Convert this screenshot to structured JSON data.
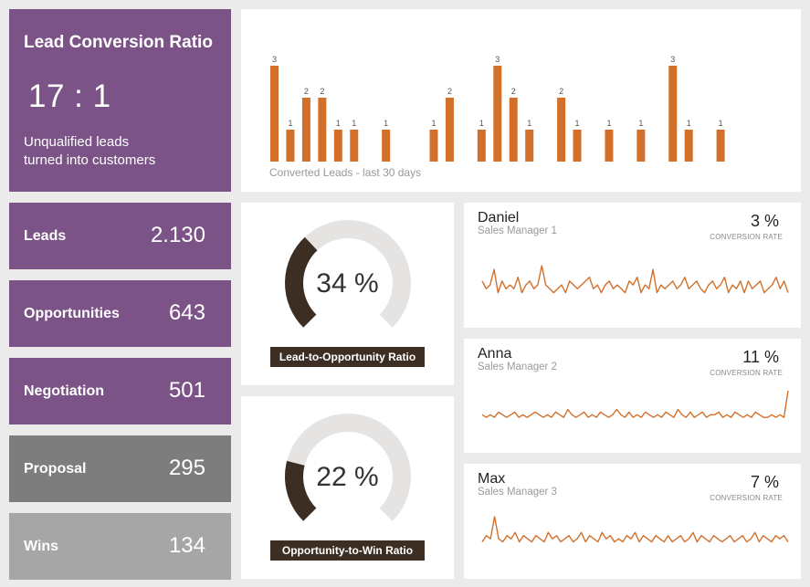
{
  "hero": {
    "title": "Lead Conversion Ratio",
    "ratio": "17 : 1",
    "description_line1": "Unqualified leads",
    "description_line2": "turned into customers"
  },
  "stats": [
    {
      "label": "Leads",
      "value": "2.130"
    },
    {
      "label": "Opportunities",
      "value": "643"
    },
    {
      "label": "Negotiation",
      "value": "501"
    },
    {
      "label": "Proposal",
      "value": "295"
    },
    {
      "label": "Wins",
      "value": "134"
    }
  ],
  "chart_data": {
    "type": "bar",
    "title": "Converted Leads - last 30 days",
    "values": [
      3,
      1,
      2,
      2,
      1,
      1,
      0,
      1,
      0,
      0,
      1,
      2,
      0,
      1,
      3,
      2,
      1,
      0,
      2,
      1,
      0,
      1,
      0,
      1,
      0,
      3,
      1,
      0,
      1,
      0
    ],
    "data_labels": true,
    "color": "#d2702b"
  },
  "gauges": [
    {
      "value": "34 %",
      "fraction": 0.34,
      "label": "Lead-to-Opportunity Ratio"
    },
    {
      "value": "22 %",
      "fraction": 0.22,
      "label": "Opportunity-to-Win Ratio"
    }
  ],
  "managers": [
    {
      "name": "Daniel",
      "role": "Sales Manager 1",
      "rate": "3 %",
      "rate_label": "CONVERSION RATE",
      "spark": [
        5,
        3,
        4,
        8,
        2,
        5,
        3,
        4,
        3,
        6,
        2,
        4,
        5,
        3,
        4,
        9,
        4,
        3,
        2,
        3,
        4,
        2,
        5,
        4,
        3,
        4,
        5,
        6,
        3,
        4,
        2,
        4,
        5,
        3,
        4,
        3,
        2,
        5,
        4,
        6,
        2,
        4,
        3,
        8,
        2,
        4,
        3,
        4,
        5,
        3,
        4,
        6,
        3,
        4,
        5,
        3,
        2,
        4,
        5,
        3,
        4,
        6,
        2,
        4,
        3,
        5,
        2,
        5,
        3,
        4,
        5,
        2,
        3,
        4,
        6,
        3,
        5,
        2
      ],
      "color": "#d2702b"
    },
    {
      "name": "Anna",
      "role": "Sales Manager 2",
      "rate": "11 %",
      "rate_label": "CONVERSION RATE",
      "spark": [
        4,
        3,
        4,
        3,
        5,
        4,
        3,
        4,
        5,
        3,
        4,
        3,
        4,
        5,
        4,
        3,
        4,
        3,
        5,
        4,
        3,
        6,
        4,
        3,
        4,
        5,
        3,
        4,
        3,
        5,
        4,
        3,
        4,
        6,
        4,
        3,
        5,
        3,
        4,
        3,
        5,
        4,
        3,
        4,
        3,
        5,
        4,
        3,
        6,
        4,
        3,
        5,
        3,
        4,
        5,
        3,
        4,
        4,
        5,
        3,
        4,
        3,
        5,
        4,
        3,
        4,
        3,
        5,
        4,
        3,
        3,
        4,
        3,
        4,
        3,
        13
      ],
      "color": "#d2702b"
    },
    {
      "name": "Max",
      "role": "Sales Manager 3",
      "rate": "7 %",
      "rate_label": "CONVERSION RATE",
      "spark": [
        3,
        5,
        4,
        11,
        4,
        3,
        5,
        4,
        6,
        3,
        5,
        4,
        3,
        5,
        4,
        3,
        6,
        4,
        5,
        3,
        4,
        5,
        3,
        4,
        6,
        3,
        5,
        4,
        3,
        6,
        4,
        5,
        3,
        4,
        3,
        5,
        4,
        6,
        3,
        5,
        4,
        3,
        5,
        4,
        3,
        5,
        3,
        4,
        5,
        3,
        4,
        6,
        3,
        5,
        4,
        3,
        5,
        4,
        3,
        4,
        5,
        3,
        4,
        5,
        3,
        4,
        6,
        3,
        5,
        4,
        3,
        5,
        4,
        5,
        3
      ],
      "color": "#d2702b"
    }
  ],
  "colors": {
    "purple": "#7b5387",
    "gray_dark": "#7d7d7d",
    "gray_light": "#a6a6a6",
    "accent": "#d2702b",
    "gauge_fill": "#3d2e24",
    "gauge_track": "#e6e4e2"
  }
}
